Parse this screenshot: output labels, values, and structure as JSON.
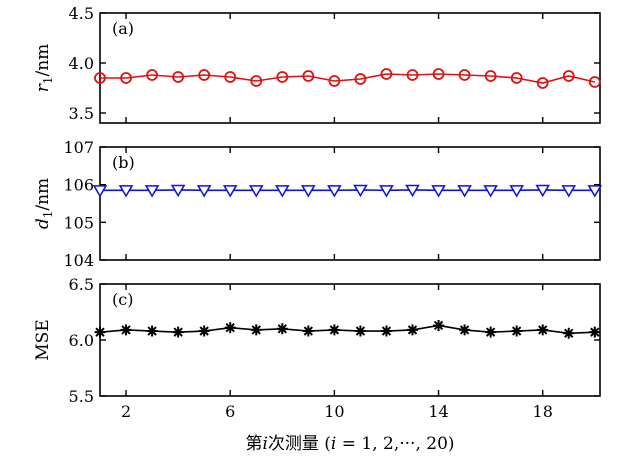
{
  "chart_data": {
    "type": "line",
    "x": [
      1,
      2,
      3,
      4,
      5,
      6,
      7,
      8,
      9,
      10,
      11,
      12,
      13,
      14,
      15,
      16,
      17,
      18,
      19,
      20
    ],
    "xlim": [
      1,
      20.2
    ],
    "xticks": [
      2,
      6,
      10,
      14,
      18
    ],
    "xtick_labels": [
      "2",
      "6",
      "10",
      "14",
      "18"
    ],
    "xlabel": "第i次测量 (i = 1, 2,···, 20)",
    "panels": [
      {
        "label": "(a)",
        "ylabel": "r1/nm",
        "ylim": [
          3.4,
          4.5
        ],
        "yticks": [
          3.5,
          4.0,
          4.5
        ],
        "ytick_labels": [
          "3.5",
          "4.0",
          "4.5"
        ],
        "series_name": "r1",
        "color": "#e01010",
        "marker": "circle",
        "values": [
          3.85,
          3.85,
          3.88,
          3.86,
          3.88,
          3.86,
          3.82,
          3.86,
          3.87,
          3.82,
          3.84,
          3.89,
          3.88,
          3.89,
          3.88,
          3.87,
          3.85,
          3.8,
          3.87,
          3.81
        ]
      },
      {
        "label": "(b)",
        "ylabel": "d1/nm",
        "ylim": [
          104,
          107
        ],
        "yticks": [
          104,
          105,
          106,
          107
        ],
        "ytick_labels": [
          "104",
          "105",
          "106",
          "107"
        ],
        "series_name": "d1",
        "color": "#1010e0",
        "marker": "triangle-down",
        "values": [
          105.85,
          105.85,
          105.85,
          105.86,
          105.85,
          105.85,
          105.85,
          105.85,
          105.85,
          105.85,
          105.86,
          105.85,
          105.86,
          105.85,
          105.85,
          105.85,
          105.85,
          105.86,
          105.85,
          105.85
        ]
      },
      {
        "label": "(c)",
        "ylabel": "MSE",
        "ylim": [
          5.5,
          6.5
        ],
        "yticks": [
          5.5,
          6.0,
          6.5
        ],
        "ytick_labels": [
          "5.5",
          "6.0",
          "6.5"
        ],
        "series_name": "MSE",
        "color": "#000000",
        "marker": "asterisk",
        "values": [
          6.07,
          6.09,
          6.08,
          6.07,
          6.08,
          6.11,
          6.09,
          6.1,
          6.08,
          6.09,
          6.08,
          6.08,
          6.09,
          6.13,
          6.09,
          6.07,
          6.08,
          6.09,
          6.06,
          6.07
        ]
      }
    ]
  }
}
